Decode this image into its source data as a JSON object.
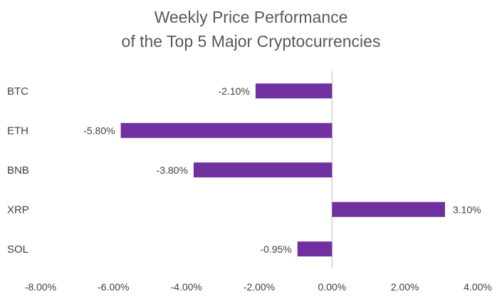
{
  "chart_data": {
    "type": "bar",
    "orientation": "horizontal",
    "title": [
      "Weekly Price Performance",
      "of the Top 5 Major Cryptocurrencies"
    ],
    "categories": [
      "BTC",
      "ETH",
      "BNB",
      "XRP",
      "SOL"
    ],
    "values": [
      -2.1,
      -5.8,
      -3.8,
      3.1,
      -0.95
    ],
    "value_labels": [
      "-2.10%",
      "-5.80%",
      "-3.80%",
      "3.10%",
      "-0.95%"
    ],
    "xlim": [
      -8,
      4
    ],
    "x_ticks": [
      -8,
      -6,
      -4,
      -2,
      0,
      2,
      4
    ],
    "x_tick_labels": [
      "-8.00%",
      "-6.00%",
      "-4.00%",
      "-2.00%",
      "0.00%",
      "2.00%",
      "4.00%"
    ],
    "xlabel": "",
    "ylabel": "",
    "grid": false,
    "legend": "none",
    "colors": {
      "bar": "#7030A0",
      "axis": "#D0D0D0",
      "text": "#404040",
      "title": "#595959"
    }
  }
}
